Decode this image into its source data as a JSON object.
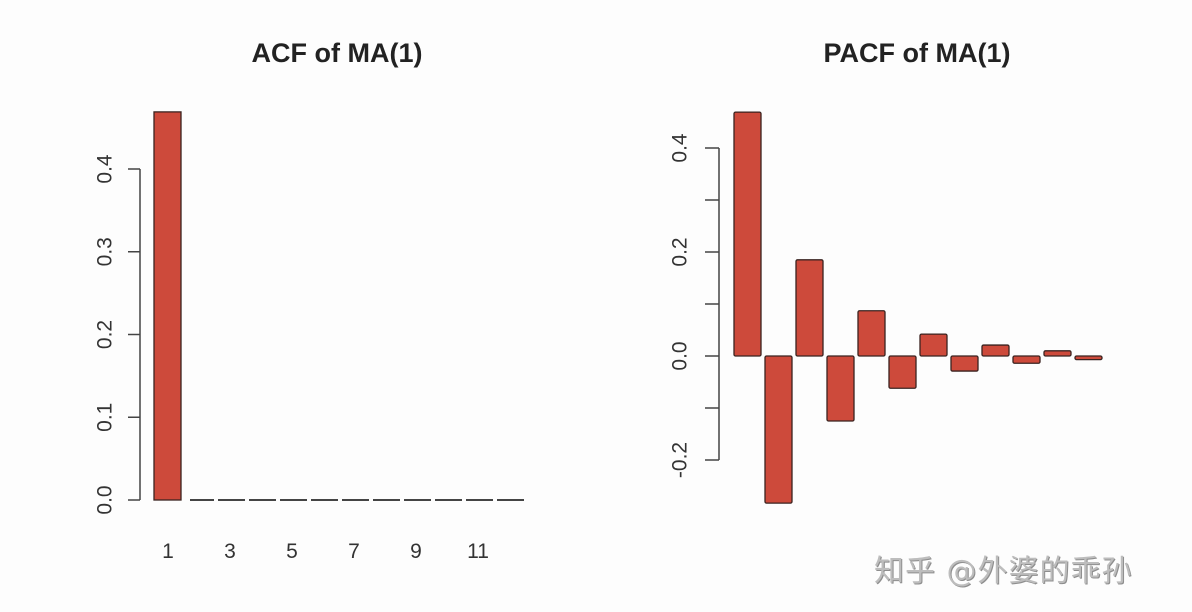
{
  "colors": {
    "bar_fill": "#cd4a3b",
    "bar_stroke": "#3a2320",
    "axis": "#444444",
    "background": "#fdfdfd"
  },
  "watermark": "知乎 @外婆的乖孙",
  "chart_data": [
    {
      "type": "bar",
      "title": "ACF of MA(1)",
      "xlabel": "",
      "ylabel": "",
      "categories": [
        1,
        2,
        3,
        4,
        5,
        6,
        7,
        8,
        9,
        10,
        11,
        12
      ],
      "values": [
        0.469,
        0,
        0,
        0,
        0,
        0,
        0,
        0,
        0,
        0,
        0,
        0
      ],
      "x_tick_labels": [
        "1",
        "3",
        "5",
        "7",
        "9",
        "11"
      ],
      "y_ticks": [
        0.0,
        0.1,
        0.2,
        0.3,
        0.4
      ],
      "y_tick_labels": [
        "0.0",
        "0.1",
        "0.2",
        "0.3",
        "0.4"
      ],
      "ylim": [
        0,
        0.47
      ],
      "grid": false,
      "legend": null
    },
    {
      "type": "bar",
      "title": "PACF of MA(1)",
      "xlabel": "",
      "ylabel": "",
      "categories": [
        1,
        2,
        3,
        4,
        5,
        6,
        7,
        8,
        9,
        10,
        11,
        12
      ],
      "values": [
        0.469,
        -0.283,
        0.185,
        -0.125,
        0.087,
        -0.062,
        0.042,
        -0.029,
        0.021,
        -0.014,
        0.01,
        -0.007
      ],
      "x_tick_labels": [],
      "y_ticks": [
        -0.2,
        -0.1,
        0.0,
        0.1,
        0.2,
        0.3,
        0.4
      ],
      "y_tick_labels": [
        "-0.2",
        "",
        "0.0",
        "",
        "0.2",
        "",
        "0.4"
      ],
      "ylim": [
        -0.283,
        0.469
      ],
      "grid": false,
      "legend": null
    }
  ]
}
